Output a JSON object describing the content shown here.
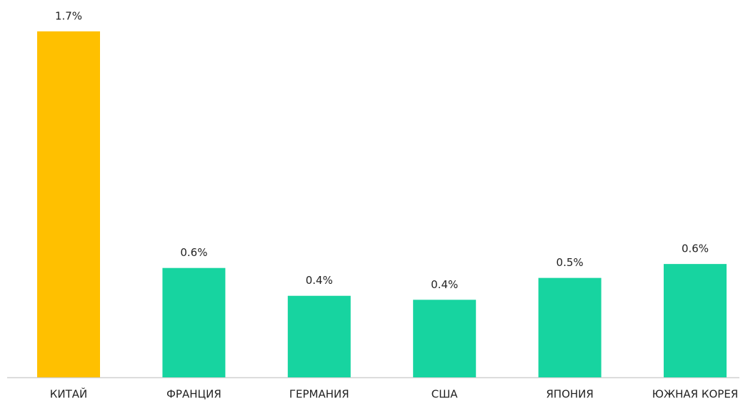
{
  "chart_data": {
    "type": "bar",
    "categories": [
      "КИТАЙ",
      "ФРАНЦИЯ",
      "ГЕРМАНИЯ",
      "США",
      "ЯПОНИЯ",
      "ЮЖНАЯ КОРЕЯ"
    ],
    "values": [
      1.74,
      0.55,
      0.41,
      0.39,
      0.5,
      0.57
    ],
    "value_labels": [
      "1.7%",
      "0.6%",
      "0.4%",
      "0.4%",
      "0.5%",
      "0.6%"
    ],
    "colors": [
      "#FFC000",
      "#17D4A0",
      "#17D4A0",
      "#17D4A0",
      "#17D4A0",
      "#17D4A0"
    ]
  }
}
